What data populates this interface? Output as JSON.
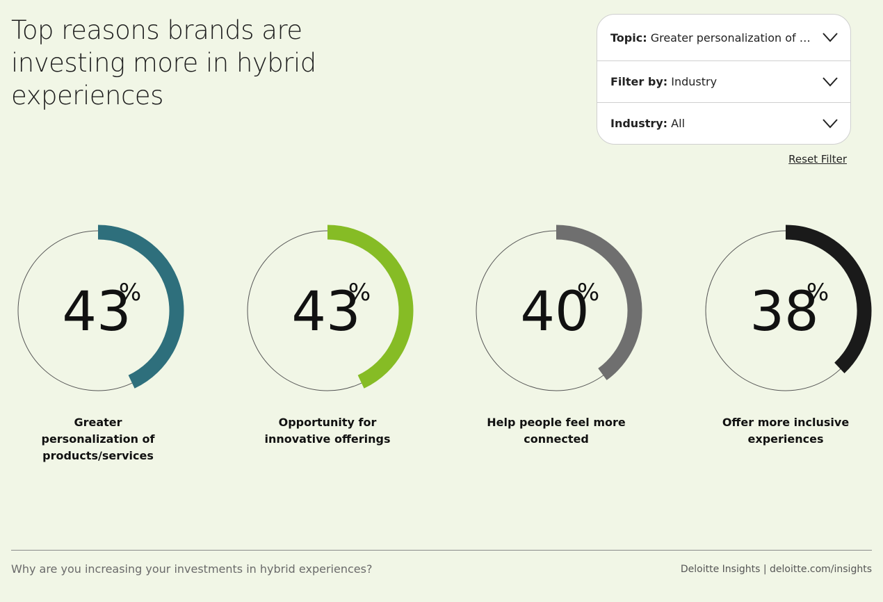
{
  "title": "Top reasons brands are investing more in hybrid experiences",
  "filters": [
    {
      "key": "Topic:",
      "value": "Greater personalization of products/services"
    },
    {
      "key": "Filter by:",
      "value": "Industry"
    },
    {
      "key": "Industry:",
      "value": "All"
    }
  ],
  "reset_label": "Reset Filter",
  "chart_data": {
    "type": "gauge",
    "unit": "%",
    "max": 100,
    "items": [
      {
        "value": 43,
        "label": "Greater personalization of products/services",
        "color": "#2e6f7c"
      },
      {
        "value": 43,
        "label": "Opportunity for innovative offerings",
        "color": "#86bc25"
      },
      {
        "value": 40,
        "label": "Help people feel more connected",
        "color": "#6f6f6f"
      },
      {
        "value": 38,
        "label": "Offer more inclusive experiences",
        "color": "#1a1a1a"
      }
    ]
  },
  "footer": {
    "question": "Why are you increasing your investments in hybrid experiences?",
    "source": "Deloitte Insights | deloitte.com/insights"
  }
}
